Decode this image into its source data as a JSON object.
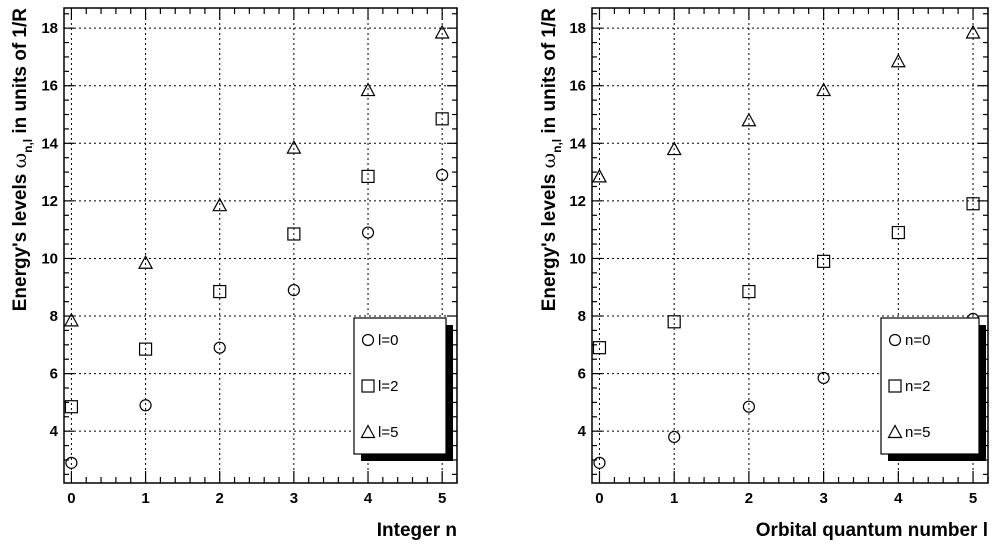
{
  "chart_data": [
    {
      "type": "scatter",
      "title": "",
      "xlabel": "Integer n",
      "ylabel": {
        "prefix": "Energy's levels ",
        "symbol": "ω",
        "subscript": "n,l",
        "suffix": " in units of 1/R"
      },
      "xlim": [
        -0.1,
        5.2
      ],
      "ylim": [
        2.2,
        18.7
      ],
      "xticks": [
        0,
        1,
        2,
        3,
        4,
        5
      ],
      "yticks": [
        4,
        6,
        8,
        10,
        12,
        14,
        16,
        18
      ],
      "grid": true,
      "legend_position": "bottom-right",
      "series": [
        {
          "name": "l=0",
          "marker": "circle",
          "x": [
            0,
            1,
            2,
            3,
            4,
            5
          ],
          "y": [
            2.9,
            4.9,
            6.9,
            8.9,
            10.9,
            12.9
          ]
        },
        {
          "name": "l=2",
          "marker": "square",
          "x": [
            0,
            1,
            2,
            3,
            4,
            5
          ],
          "y": [
            4.85,
            6.85,
            8.85,
            10.85,
            12.85,
            14.85
          ]
        },
        {
          "name": "l=5",
          "marker": "triangle",
          "x": [
            0,
            1,
            2,
            3,
            4,
            5
          ],
          "y": [
            7.85,
            9.85,
            11.85,
            13.85,
            15.85,
            17.85
          ]
        }
      ]
    },
    {
      "type": "scatter",
      "title": "",
      "xlabel": "Orbital quantum number l",
      "ylabel": {
        "prefix": "Energy's levels ",
        "symbol": "ω",
        "subscript": "n,l",
        "suffix": " in units of 1/R"
      },
      "xlim": [
        -0.1,
        5.2
      ],
      "ylim": [
        2.2,
        18.7
      ],
      "xticks": [
        0,
        1,
        2,
        3,
        4,
        5
      ],
      "yticks": [
        4,
        6,
        8,
        10,
        12,
        14,
        16,
        18
      ],
      "grid": true,
      "legend_position": "bottom-right",
      "series": [
        {
          "name": "n=0",
          "marker": "circle",
          "x": [
            0,
            1,
            2,
            3,
            4,
            5
          ],
          "y": [
            2.9,
            3.8,
            4.85,
            5.85,
            6.9,
            7.9
          ]
        },
        {
          "name": "n=2",
          "marker": "square",
          "x": [
            0,
            1,
            2,
            3,
            4,
            5
          ],
          "y": [
            6.9,
            7.8,
            8.85,
            9.9,
            10.9,
            11.9
          ]
        },
        {
          "name": "n=5",
          "marker": "triangle",
          "x": [
            0,
            1,
            2,
            3,
            4,
            5
          ],
          "y": [
            12.85,
            13.8,
            14.8,
            15.85,
            16.85,
            17.85
          ]
        }
      ]
    }
  ]
}
